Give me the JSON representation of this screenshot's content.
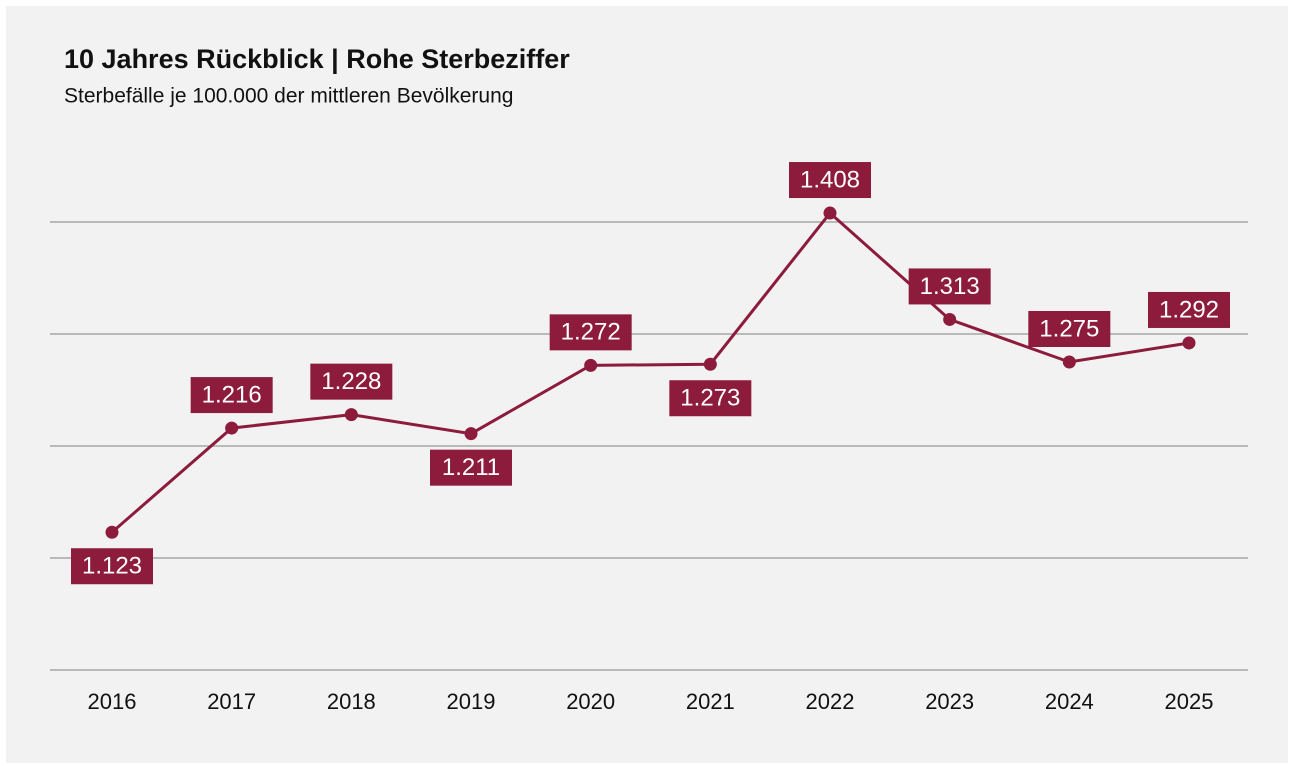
{
  "chart_data": {
    "type": "line",
    "title": "10 Jahres Rückblick | Rohe Sterbeziffer",
    "subtitle": "Sterbefälle je 100.000 der mittleren Bevölkerung",
    "categories": [
      "2016",
      "2017",
      "2018",
      "2019",
      "2020",
      "2021",
      "2022",
      "2023",
      "2024",
      "2025"
    ],
    "values": [
      1123,
      1216,
      1228,
      1211,
      1272,
      1273,
      1408,
      1313,
      1275,
      1292
    ],
    "value_labels": [
      "1.123",
      "1.216",
      "1.228",
      "1.211",
      "1.272",
      "1.273",
      "1.408",
      "1.313",
      "1.275",
      "1.292"
    ],
    "color": "#8c1b3c",
    "ylim": [
      1000,
      1400
    ],
    "yticks": [
      1000,
      1100,
      1200,
      1300,
      1400
    ],
    "grid": true
  }
}
